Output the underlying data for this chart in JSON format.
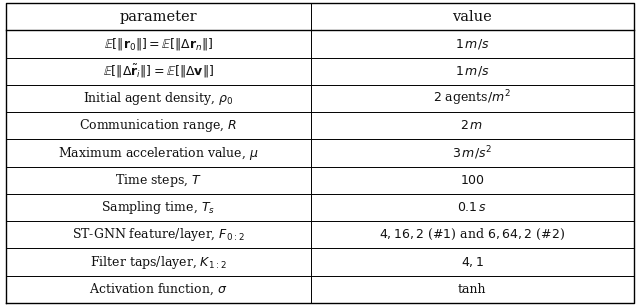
{
  "rows": [
    [
      "$\\mathbb{E}[\\|\\mathbf{r}_0\\|] = \\mathbb{E}[\\|\\Delta\\mathbf{r}_n\\|]$",
      "$1\\,m/s$"
    ],
    [
      "$\\mathbb{E}[\\|\\Delta\\tilde{\\mathbf{r}}_i\\|] = \\mathbb{E}[\\|\\Delta\\mathbf{v}\\|]$",
      "$1\\,m/s$"
    ],
    [
      "Initial agent density, $\\rho_0$",
      "$2$ agents$/m^2$"
    ],
    [
      "Communication range, $R$",
      "$2\\,m$"
    ],
    [
      "Maximum acceleration value, $\\mu$",
      "$3\\,m/s^2$"
    ],
    [
      "Time steps, $T$",
      "$100$"
    ],
    [
      "Sampling time, $T_s$",
      "$0.1\\,s$"
    ],
    [
      "ST-GNN feature/layer, $F_{0:2}$",
      "$4, 16, 2$ ($\\#1$) and $6, 64, 2$ ($\\#2$)"
    ],
    [
      "Filter taps/layer, $K_{1:2}$",
      "$4, 1$"
    ],
    [
      "Activation function, $\\sigma$",
      "tanh"
    ]
  ],
  "col_headers": [
    "parameter",
    "value"
  ],
  "text_color": "#111111",
  "col_split": 0.485,
  "border_lw": 1.0,
  "inner_lw": 0.7,
  "header_fs": 10.5,
  "cell_fs": 9.0,
  "fig_width": 6.4,
  "fig_height": 3.06,
  "dpi": 100
}
